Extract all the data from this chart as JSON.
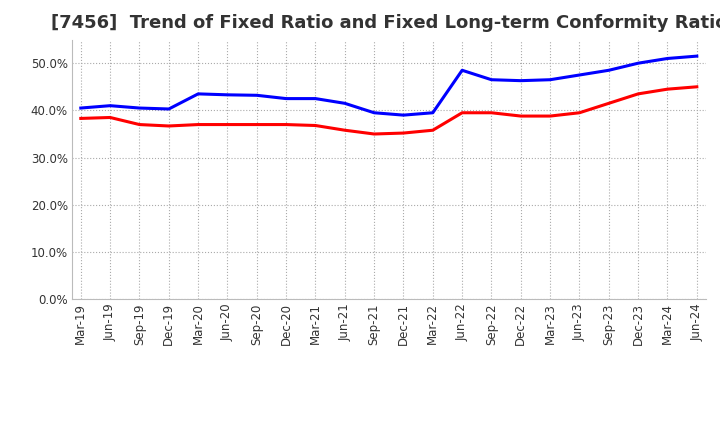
{
  "title": "[7456]  Trend of Fixed Ratio and Fixed Long-term Conformity Ratio",
  "x_labels": [
    "Mar-19",
    "Jun-19",
    "Sep-19",
    "Dec-19",
    "Mar-20",
    "Jun-20",
    "Sep-20",
    "Dec-20",
    "Mar-21",
    "Jun-21",
    "Sep-21",
    "Dec-21",
    "Mar-22",
    "Jun-22",
    "Sep-22",
    "Dec-22",
    "Mar-23",
    "Jun-23",
    "Sep-23",
    "Dec-23",
    "Mar-24",
    "Jun-24"
  ],
  "fixed_ratio": [
    40.5,
    41.0,
    40.5,
    40.3,
    43.5,
    43.3,
    43.2,
    42.5,
    42.5,
    41.5,
    39.5,
    39.0,
    39.5,
    48.5,
    46.5,
    46.3,
    46.5,
    47.5,
    48.5,
    50.0,
    51.0,
    51.5
  ],
  "fixed_lt_ratio": [
    38.3,
    38.5,
    37.0,
    36.7,
    37.0,
    37.0,
    37.0,
    37.0,
    36.8,
    35.8,
    35.0,
    35.2,
    35.8,
    39.5,
    39.5,
    38.8,
    38.8,
    39.5,
    41.5,
    43.5,
    44.5,
    45.0
  ],
  "fixed_ratio_color": "#0000FF",
  "fixed_lt_ratio_color": "#FF0000",
  "background_color": "#FFFFFF",
  "plot_bg_color": "#FFFFFF",
  "grid_color": "#AAAAAA",
  "ylim": [
    0,
    55
  ],
  "yticks": [
    0,
    10,
    20,
    30,
    40,
    50
  ],
  "title_fontsize": 13,
  "tick_fontsize": 8.5,
  "legend_labels": [
    "Fixed Ratio",
    "Fixed Long-term Conformity Ratio"
  ]
}
